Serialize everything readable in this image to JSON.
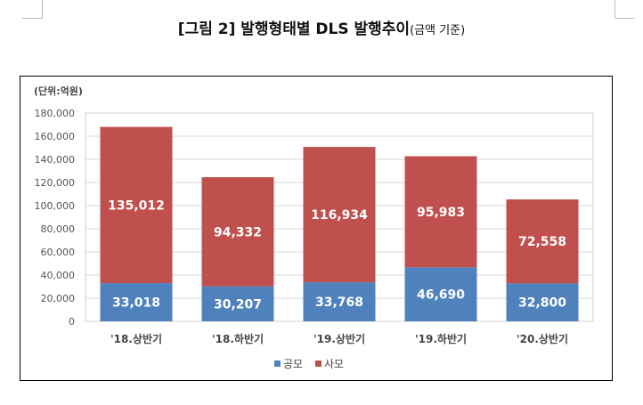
{
  "title": {
    "main": "[그림 2] 발행형태별 DLS 발행추이",
    "sub": "(금액 기준)"
  },
  "chart_data": {
    "type": "bar",
    "stacked": true,
    "unit_label": "(단위:억원)",
    "categories": [
      "'18.상반기",
      "'18.하반기",
      "'19.상반기",
      "'19.하반기",
      "'20.상반기"
    ],
    "series": [
      {
        "name": "공모",
        "color": "#4f81bd",
        "values": [
          33018,
          30207,
          33768,
          46690,
          32800
        ],
        "labels": [
          "33,018",
          "30,207",
          "33,768",
          "46,690",
          "32,800"
        ]
      },
      {
        "name": "사모",
        "color": "#c0504d",
        "values": [
          135012,
          94332,
          116934,
          95983,
          72558
        ],
        "labels": [
          "135,012",
          "94,332",
          "116,934",
          "95,983",
          "72,558"
        ]
      }
    ],
    "ylim": [
      0,
      180000
    ],
    "yticks": [
      "0",
      "20,000",
      "40,000",
      "60,000",
      "80,000",
      "100,000",
      "120,000",
      "140,000",
      "160,000",
      "180,000"
    ],
    "grid": true,
    "legend_position": "bottom"
  }
}
